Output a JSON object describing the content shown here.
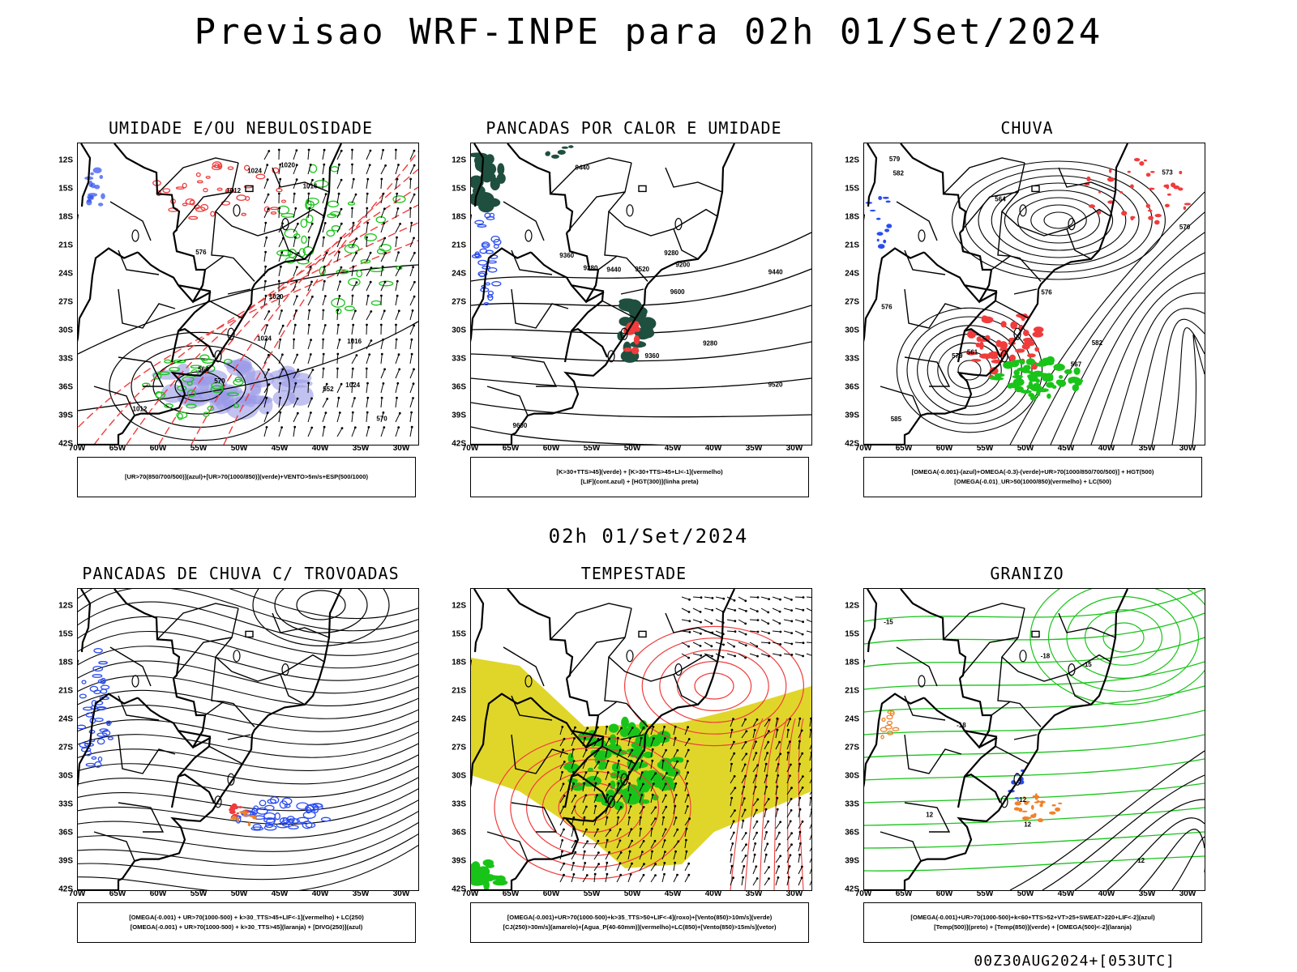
{
  "header": {
    "title": "Previsao WRF-INPE  para 02h 01/Set/2024"
  },
  "mid_date": "02h 01/Set/2024",
  "footer": "00Z30AUG2024+[053UTC]",
  "axes": {
    "lat_labels": [
      "12S",
      "15S",
      "18S",
      "21S",
      "24S",
      "27S",
      "30S",
      "33S",
      "36S",
      "39S",
      "42S"
    ],
    "lon_labels": [
      "70W",
      "65W",
      "60W",
      "55W",
      "50W",
      "45W",
      "40W",
      "35W",
      "30W"
    ]
  },
  "colors": {
    "blue": "#2a4cf0",
    "green": "#19c419",
    "red": "#f03c3c",
    "orange": "#f0822a",
    "yellow": "#e0d62a",
    "purple": "#9a9ae8",
    "darkgreen": "#1f4f3f",
    "black": "#000000"
  },
  "panels": [
    {
      "title": "UMIDADE E/OU NEBULOSIDADE",
      "legend": [
        "[UR>70(850/700/500)](azul)+[UR>70(1000/850)](verde)+VENTO>5m/s+ESP(500/1000)"
      ],
      "contour_labels": [
        "1012",
        "1016",
        "1020",
        "1024",
        "1012",
        "1020",
        "1024",
        "1016",
        "552",
        "564",
        "570",
        "576",
        "570",
        "1024"
      ]
    },
    {
      "title": "PANCADAS POR CALOR E UMIDADE",
      "legend": [
        "[K>30+TTS>45](verde) + [K>30+TTS>45+LI<-1](vermelho)",
        "[LIF](cont.azul) + [HGT(300)](linha preta)"
      ],
      "contour_labels": [
        "9600",
        "9520",
        "9440",
        "9360",
        "9280",
        "9200",
        "9600",
        "9520",
        "9440",
        "9360",
        "9280",
        "9440",
        "9280"
      ]
    },
    {
      "title": "CHUVA",
      "legend": [
        "[OMEGA(-0.001)-(azul)+OMEGA(-0.3)-(verde)+UR>70(1000/850/700/500)] + HGT(500)",
        "[OMEGA(-0.01)_UR>50(1000/850)(vermelho) + LC(500)"
      ],
      "contour_labels": [
        "582",
        "579",
        "576",
        "573",
        "570",
        "567",
        "564",
        "561",
        "585",
        "582",
        "579",
        "576"
      ]
    },
    {
      "title": "PANCADAS DE CHUVA C/ TROVOADAS",
      "legend": [
        "[OMEGA(-0.001) + UR>70(1000-500) + k>30_TTS>45+LIF<-1](vermelho) + LC(250)",
        "[OMEGA(-0.001) + UR>70(1000-500) + k>30_TTS>45](laranja) + [DIVG(250)](azul)"
      ],
      "contour_labels": []
    },
    {
      "title": "TEMPESTADE",
      "legend": [
        "[OMEGA(-0.001)+UR>70(1000-500)+k>35_TTS>50+LIF<-4](roxo)+[Vento(850)>10m/s](verde)",
        "[CJ(250)>30m/s](amarelo)+[Agua_P(40-60mm)](vermelho)+LC(850)+[Vento(850)>15m/s](vetor)"
      ],
      "contour_labels": []
    },
    {
      "title": "GRANIZO",
      "legend": [
        "[OMEGA(-0.001)+UR>70(1000-500)+k<60+TTS>52+VT>25+SWEAT>220+LIF<-2](azul)",
        "[Temp(500)](preto) + [Temp(850)](verde) + [OMEGA(500)<-2](laranja)"
      ],
      "contour_labels": [
        "-15",
        "-18",
        "-12",
        "12",
        "-15",
        "12",
        "-18",
        "12"
      ]
    }
  ]
}
